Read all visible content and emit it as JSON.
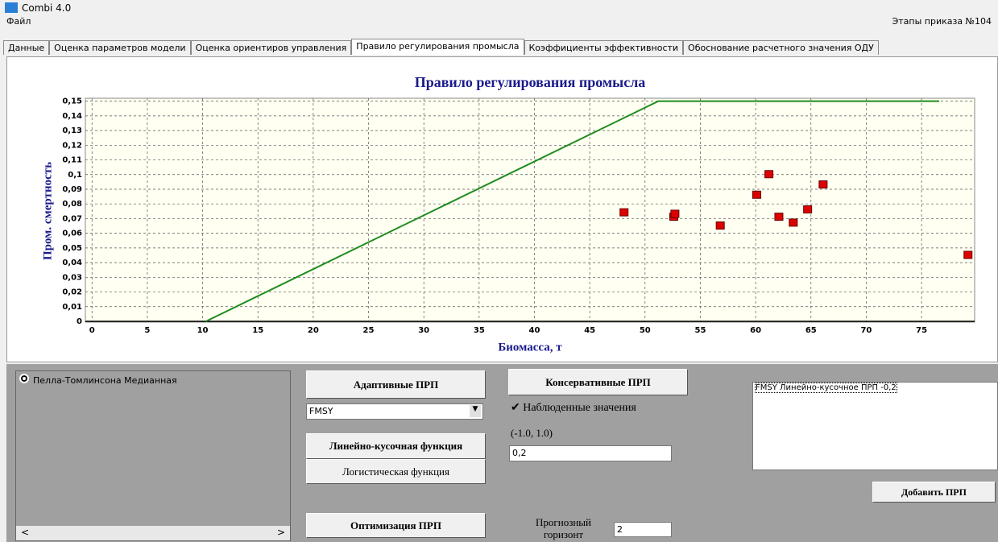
{
  "window": {
    "title": "Combi 4.0",
    "menu": [
      "Файл"
    ],
    "stage": "Этапы приказа №104",
    "tabs": [
      "Данные",
      "Оценка параметров модели",
      "Оценка ориентиров управления",
      "Правило регулирования промысла",
      "Коэффициенты эффективности",
      "Обоснование расчетного значения ОДУ"
    ],
    "models": [
      "Пелла-Томлинсона Медианная"
    ],
    "adaptive_button": "Адаптивные ПРП",
    "rule_select": "FMSY",
    "linear_button": "Линейно-кусочная функция",
    "logistic_button": "Логистическая функция",
    "optimize_button": "Оптимизация ПРП",
    "conservative_button": "Консервативные ПРП",
    "observed_checkbox": "Наблюденные значения",
    "range_label": "(-1.0, 1.0)",
    "coef_input": "0,2",
    "horizon_label": "Прогнозный горизонт",
    "horizon_input": "2",
    "rules_list": [
      "FMSY Линейно-кусочное ПРП -0,2"
    ],
    "add_button": "Добавить ПРП"
  },
  "chart_data": {
    "type": "line",
    "title": "Правило регулирования промысла",
    "x_label": "Биомасса, т",
    "y_label": "Пром. смертность",
    "xlim": [
      -0.6,
      79.8
    ],
    "ylim": [
      0,
      0.152
    ],
    "grid": true,
    "xticks": [
      0,
      5,
      10,
      15,
      20,
      25,
      30,
      35,
      40,
      45,
      50,
      55,
      60,
      65,
      70,
      75
    ],
    "yticks": [
      0,
      {
        "value": 0.01,
        "label": "0,01"
      },
      {
        "value": 0.02,
        "label": "0,02"
      },
      {
        "value": 0.03,
        "label": "0,03"
      },
      {
        "value": 0.04,
        "label": "0,04"
      },
      {
        "value": 0.05,
        "label": "0,05"
      },
      {
        "value": 0.06,
        "label": "0,06"
      },
      {
        "value": 0.07,
        "label": "0,07"
      },
      {
        "value": 0.08,
        "label": "0,08"
      },
      {
        "value": 0.09,
        "label": "0,09"
      },
      {
        "value": 0.1,
        "label": "0,1"
      },
      {
        "value": 0.11,
        "label": "0,11"
      },
      {
        "value": 0.12,
        "label": "0,12"
      },
      {
        "value": 0.13,
        "label": "0,13"
      },
      {
        "value": 0.14,
        "label": "0,14"
      },
      {
        "value": 0.15,
        "label": "0,15"
      }
    ],
    "series": [
      {
        "mark": "line",
        "color": "#1e8c1e",
        "x": [
          10.3,
          51.2,
          76.6
        ],
        "values": [
          0,
          0.15,
          0.15
        ]
      },
      {
        "mark": "square",
        "color": "#dd0000",
        "x": [
          48.1,
          52.6,
          52.7,
          56.8,
          60.1,
          61.2,
          62.1,
          63.4,
          64.7,
          66.1,
          79.2
        ],
        "values": [
          0.074,
          0.071,
          0.073,
          0.065,
          0.086,
          0.1,
          0.071,
          0.067,
          0.076,
          0.093,
          0.045
        ]
      }
    ]
  }
}
